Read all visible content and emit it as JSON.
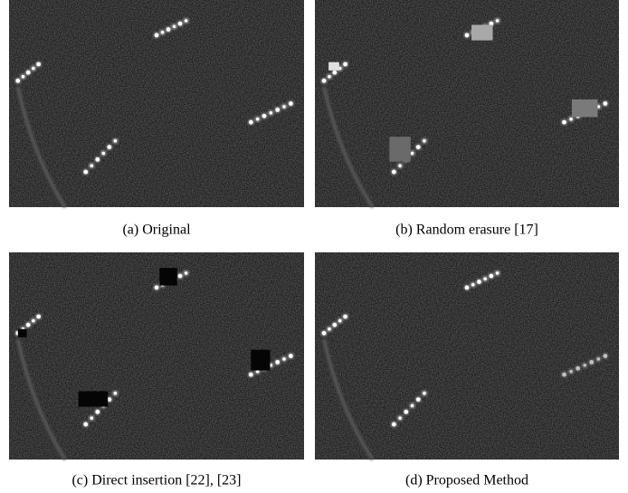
{
  "figure": {
    "panels": [
      {
        "caption": "(a) Original"
      },
      {
        "caption": "(b) Random erasure [17]"
      },
      {
        "caption": "(c) Direct insertion [22], [23]"
      },
      {
        "caption": "(d) Proposed Method"
      }
    ]
  }
}
